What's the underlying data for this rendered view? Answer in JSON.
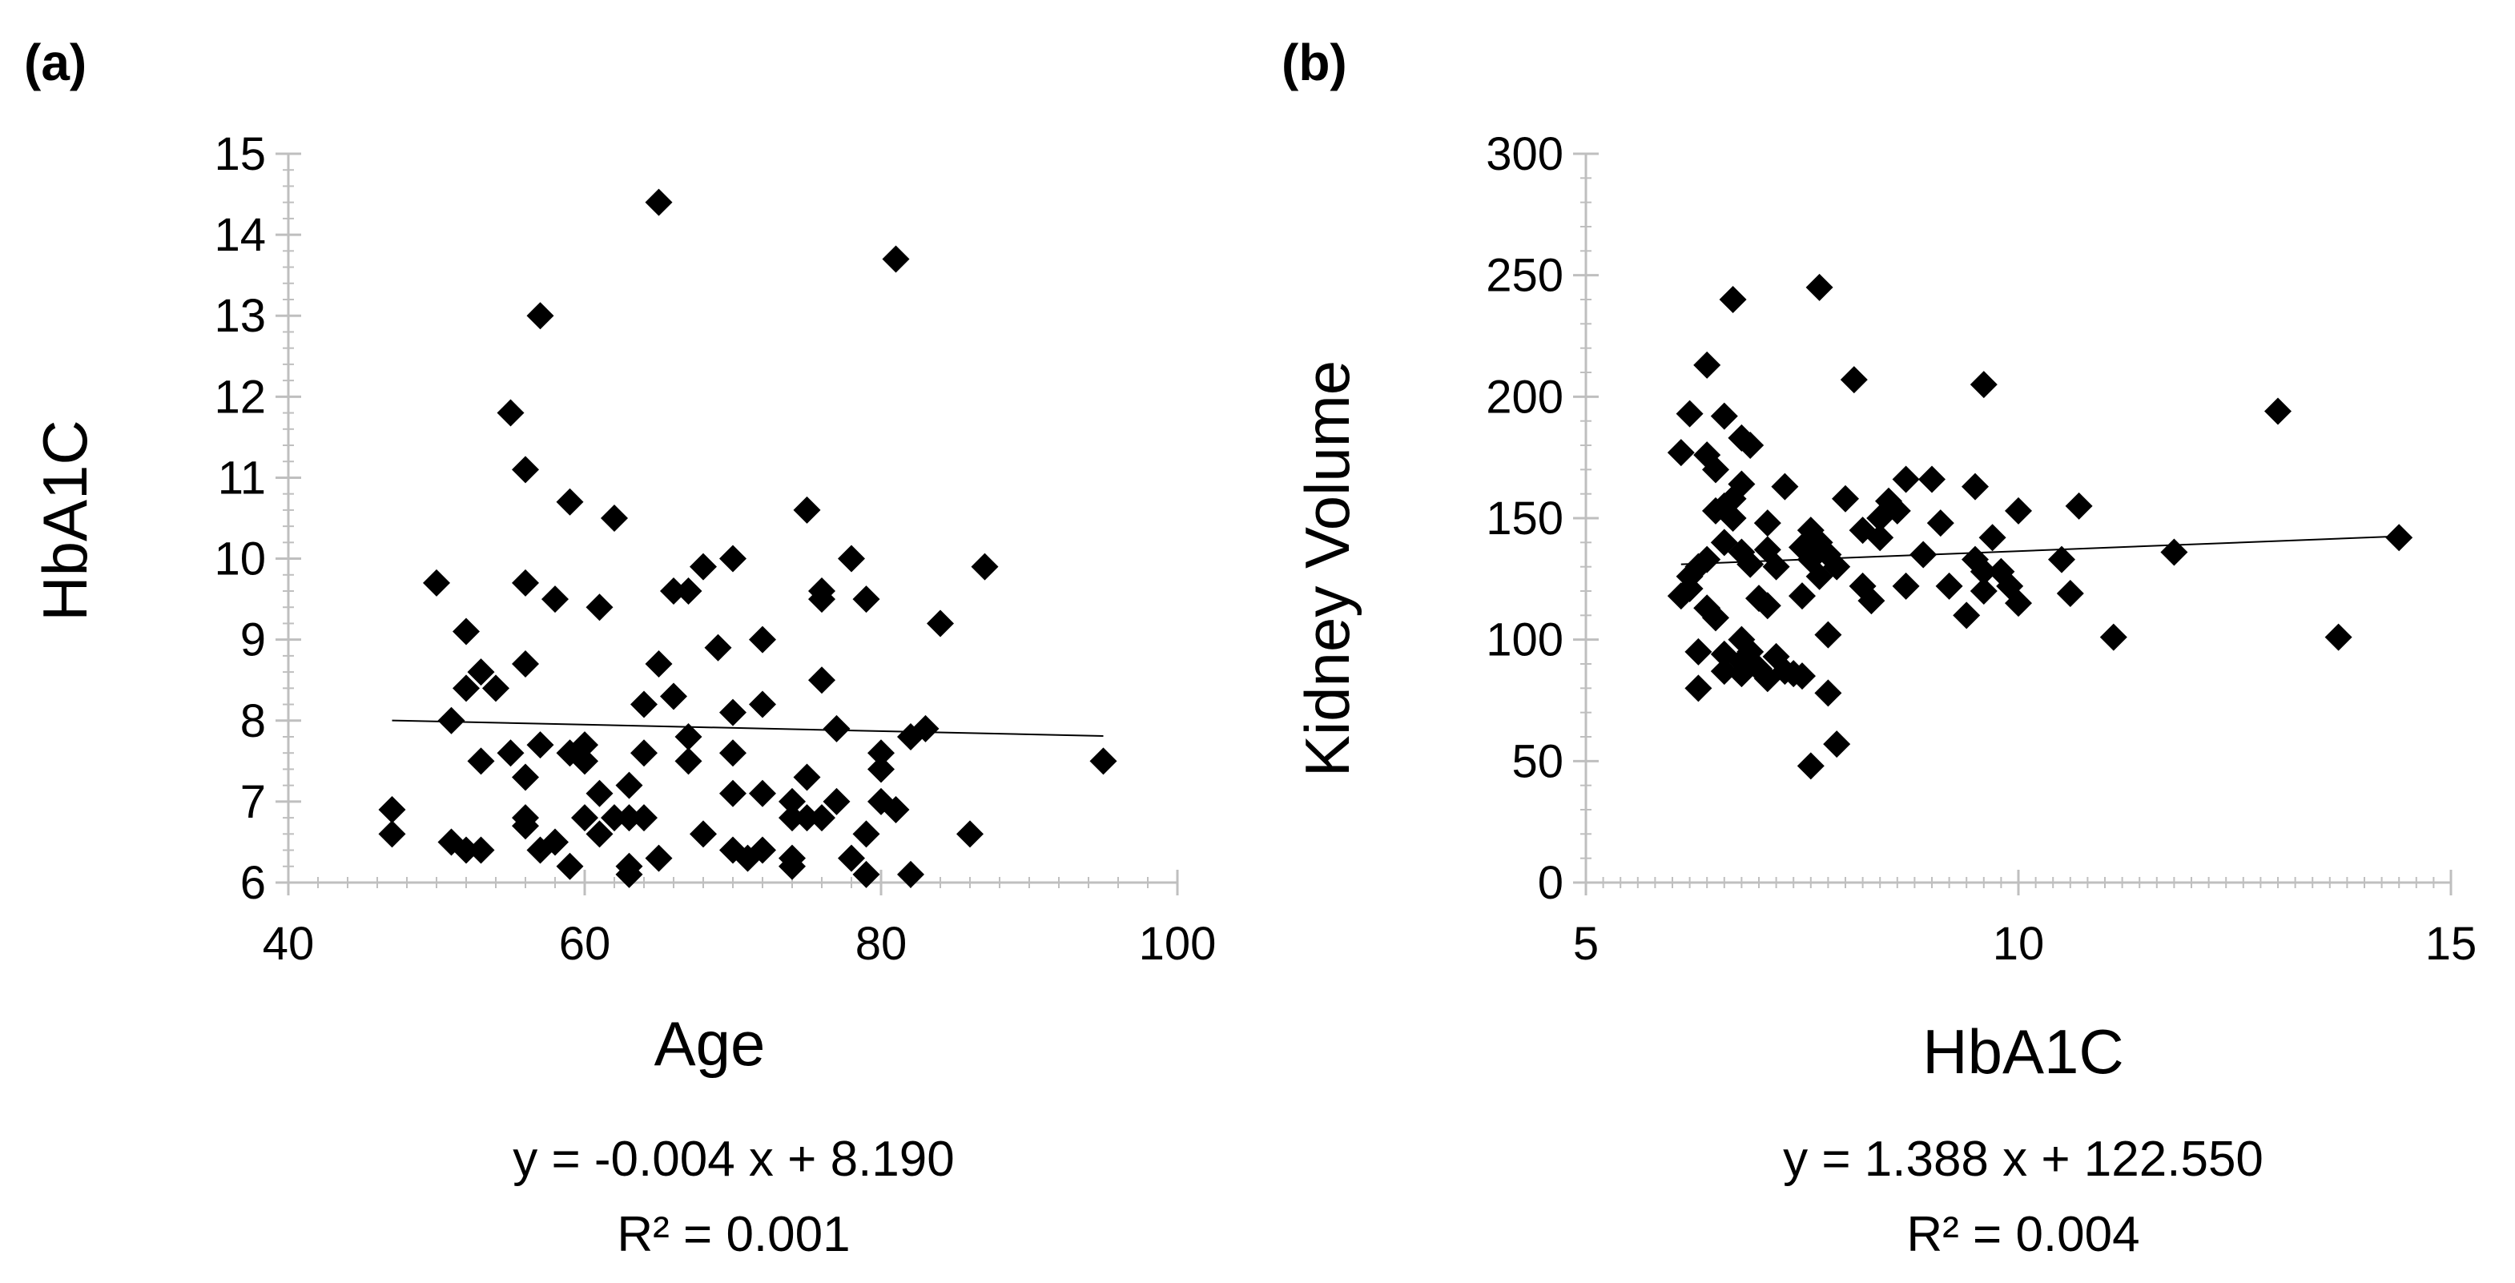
{
  "colors": {
    "marker": "#000000",
    "axis": "#bfbfbf",
    "trendline": "#000000"
  },
  "chart_data": [
    {
      "type": "scatter",
      "panel_label": "(a)",
      "title": "",
      "xlabel": "Age",
      "ylabel": "HbA1C",
      "xlim": [
        40,
        100
      ],
      "ylim": [
        6,
        15
      ],
      "xticks": [
        40,
        60,
        80,
        100
      ],
      "yticks": [
        6,
        7,
        8,
        9,
        10,
        11,
        12,
        13,
        14,
        15
      ],
      "x_minor_step": 2,
      "y_minor_step": 0.2,
      "grid": false,
      "marker": "diamond",
      "trendline": {
        "slope": -0.004,
        "intercept": 8.19,
        "x_range": [
          47,
          95
        ]
      },
      "equation_text": "y = -0.004 x + 8.190",
      "r2_text": "R² = 0.001",
      "points": [
        [
          47,
          6.6
        ],
        [
          47,
          6.9
        ],
        [
          50,
          9.7
        ],
        [
          51,
          8.0
        ],
        [
          51,
          6.5
        ],
        [
          52,
          9.1
        ],
        [
          52,
          8.4
        ],
        [
          52,
          6.4
        ],
        [
          53,
          8.6
        ],
        [
          53,
          7.5
        ],
        [
          53,
          6.4
        ],
        [
          54,
          8.4
        ],
        [
          55,
          11.8
        ],
        [
          55,
          7.6
        ],
        [
          56,
          11.1
        ],
        [
          56,
          9.7
        ],
        [
          56,
          8.7
        ],
        [
          56,
          7.3
        ],
        [
          56,
          6.8
        ],
        [
          56,
          6.7
        ],
        [
          57,
          13.0
        ],
        [
          57,
          7.7
        ],
        [
          57,
          6.4
        ],
        [
          58,
          9.5
        ],
        [
          58,
          6.5
        ],
        [
          59,
          10.7
        ],
        [
          59,
          7.6
        ],
        [
          59,
          6.2
        ],
        [
          60,
          7.7
        ],
        [
          60,
          7.5
        ],
        [
          60,
          6.8
        ],
        [
          61,
          9.4
        ],
        [
          61,
          7.1
        ],
        [
          61,
          6.6
        ],
        [
          62,
          10.5
        ],
        [
          62,
          6.8
        ],
        [
          63,
          7.2
        ],
        [
          63,
          6.8
        ],
        [
          63,
          6.2
        ],
        [
          63,
          6.1
        ],
        [
          64,
          8.2
        ],
        [
          64,
          7.6
        ],
        [
          64,
          6.8
        ],
        [
          65,
          14.4
        ],
        [
          65,
          8.7
        ],
        [
          65,
          6.3
        ],
        [
          66,
          9.6
        ],
        [
          66,
          8.3
        ],
        [
          67,
          9.6
        ],
        [
          67,
          7.8
        ],
        [
          67,
          7.5
        ],
        [
          68,
          9.9
        ],
        [
          68,
          6.6
        ],
        [
          69,
          8.9
        ],
        [
          70,
          10.0
        ],
        [
          70,
          8.1
        ],
        [
          70,
          7.6
        ],
        [
          70,
          7.1
        ],
        [
          70,
          6.4
        ],
        [
          71,
          6.3
        ],
        [
          72,
          9.0
        ],
        [
          72,
          8.2
        ],
        [
          72,
          7.1
        ],
        [
          72,
          6.4
        ],
        [
          74,
          7.0
        ],
        [
          74,
          6.8
        ],
        [
          74,
          6.3
        ],
        [
          74,
          6.2
        ],
        [
          75,
          10.6
        ],
        [
          75,
          7.3
        ],
        [
          75,
          6.8
        ],
        [
          76,
          9.6
        ],
        [
          76,
          9.5
        ],
        [
          76,
          8.5
        ],
        [
          76,
          6.8
        ],
        [
          77,
          7.9
        ],
        [
          77,
          7.0
        ],
        [
          78,
          10.0
        ],
        [
          78,
          6.3
        ],
        [
          79,
          9.5
        ],
        [
          79,
          6.6
        ],
        [
          79,
          6.1
        ],
        [
          80,
          7.6
        ],
        [
          80,
          7.4
        ],
        [
          80,
          7.0
        ],
        [
          81,
          13.7
        ],
        [
          81,
          6.9
        ],
        [
          82,
          7.8
        ],
        [
          82,
          6.1
        ],
        [
          83,
          7.9
        ],
        [
          84,
          9.2
        ],
        [
          86,
          6.6
        ],
        [
          87,
          9.9
        ],
        [
          95,
          7.5
        ]
      ]
    },
    {
      "type": "scatter",
      "panel_label": "(b)",
      "title": "",
      "xlabel": "HbA1C",
      "ylabel": "Kidney Volume",
      "xlim": [
        5,
        15
      ],
      "ylim": [
        0,
        300
      ],
      "xticks": [
        5,
        10,
        15
      ],
      "yticks": [
        0,
        50,
        100,
        150,
        200,
        250,
        300
      ],
      "x_minor_step": 0.2,
      "y_minor_step": 10,
      "grid": false,
      "marker": "diamond",
      "trendline": {
        "slope": 1.388,
        "intercept": 122.55,
        "x_range": [
          6.1,
          14.4
        ]
      },
      "equation_text": "y = 1.388 x + 122.550",
      "r2_text": "R² = 0.004",
      "points": [
        [
          6.1,
          177
        ],
        [
          6.1,
          118
        ],
        [
          6.2,
          193
        ],
        [
          6.2,
          126
        ],
        [
          6.2,
          121
        ],
        [
          6.3,
          130
        ],
        [
          6.3,
          95
        ],
        [
          6.3,
          80
        ],
        [
          6.4,
          213
        ],
        [
          6.4,
          176
        ],
        [
          6.4,
          133
        ],
        [
          6.4,
          113
        ],
        [
          6.5,
          170
        ],
        [
          6.5,
          153
        ],
        [
          6.5,
          109
        ],
        [
          6.6,
          192
        ],
        [
          6.6,
          155
        ],
        [
          6.6,
          140
        ],
        [
          6.6,
          94
        ],
        [
          6.6,
          87
        ],
        [
          6.7,
          240
        ],
        [
          6.7,
          158
        ],
        [
          6.7,
          150
        ],
        [
          6.8,
          183
        ],
        [
          6.8,
          164
        ],
        [
          6.8,
          136
        ],
        [
          6.8,
          100
        ],
        [
          6.8,
          91
        ],
        [
          6.8,
          86
        ],
        [
          6.9,
          180
        ],
        [
          6.9,
          131
        ],
        [
          6.9,
          95
        ],
        [
          7.0,
          117
        ],
        [
          7.0,
          88
        ],
        [
          7.1,
          148
        ],
        [
          7.1,
          137
        ],
        [
          7.1,
          114
        ],
        [
          7.1,
          84
        ],
        [
          7.2,
          130
        ],
        [
          7.2,
          93
        ],
        [
          7.3,
          163
        ],
        [
          7.3,
          87
        ],
        [
          7.4,
          86
        ],
        [
          7.5,
          138
        ],
        [
          7.5,
          118
        ],
        [
          7.5,
          85
        ],
        [
          7.6,
          145
        ],
        [
          7.6,
          133
        ],
        [
          7.6,
          48
        ],
        [
          7.7,
          245
        ],
        [
          7.7,
          140
        ],
        [
          7.7,
          126
        ],
        [
          7.8,
          102
        ],
        [
          7.8,
          78
        ],
        [
          7.8,
          135
        ],
        [
          7.9,
          130
        ],
        [
          7.9,
          57
        ],
        [
          8.0,
          158
        ],
        [
          8.1,
          207
        ],
        [
          8.2,
          145
        ],
        [
          8.2,
          122
        ],
        [
          8.3,
          116
        ],
        [
          8.4,
          150
        ],
        [
          8.4,
          142
        ],
        [
          8.5,
          157
        ],
        [
          8.6,
          153
        ],
        [
          8.7,
          166
        ],
        [
          8.7,
          122
        ],
        [
          8.9,
          135
        ],
        [
          9.0,
          166
        ],
        [
          9.1,
          148
        ],
        [
          9.2,
          122
        ],
        [
          9.4,
          110
        ],
        [
          9.5,
          163
        ],
        [
          9.5,
          133
        ],
        [
          9.6,
          205
        ],
        [
          9.6,
          128
        ],
        [
          9.6,
          120
        ],
        [
          9.7,
          142
        ],
        [
          9.8,
          128
        ],
        [
          9.9,
          122
        ],
        [
          10.0,
          153
        ],
        [
          10.0,
          115
        ],
        [
          10.5,
          133
        ],
        [
          10.6,
          119
        ],
        [
          10.7,
          155
        ],
        [
          11.1,
          101
        ],
        [
          11.8,
          136
        ],
        [
          13.0,
          194
        ],
        [
          13.7,
          101
        ],
        [
          14.4,
          142
        ]
      ]
    }
  ]
}
